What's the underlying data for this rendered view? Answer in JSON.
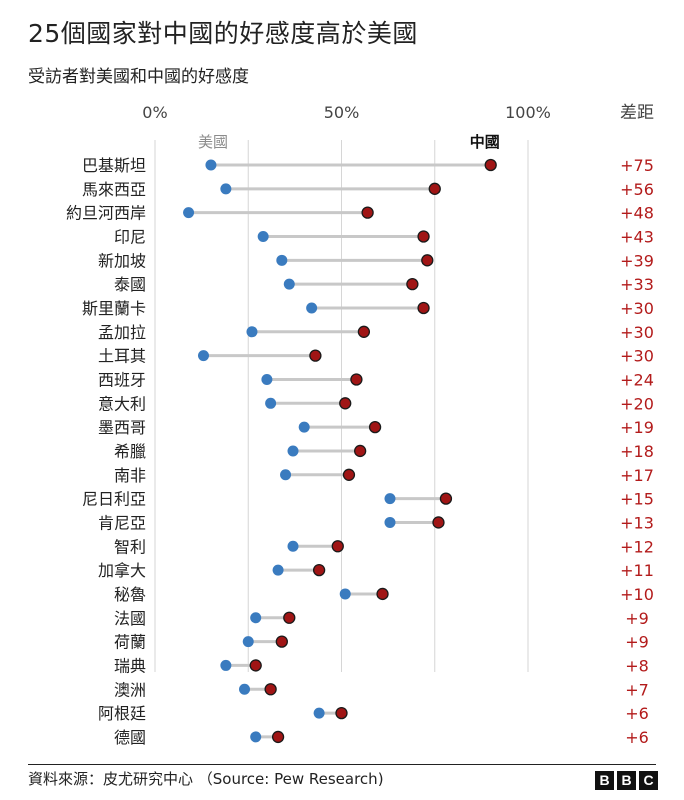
{
  "title": "25個國家對中國的好感度高於美國",
  "subtitle": "受訪者對美國和中國的好感度",
  "source": "資料來源：皮尤研究中心 （Source: Pew Research)",
  "logo_letters": [
    "B",
    "B",
    "C"
  ],
  "colors": {
    "us": "#3a7bbf",
    "china": "#a01515",
    "china_outline": "#1a1a1a",
    "connector": "#c8c8c8",
    "gridline": "#d6d6d6",
    "diff_text": "#b31b1b",
    "us_label": "#8c8c8c"
  },
  "chart_data": {
    "type": "dumbbell",
    "x_tick_labels": [
      "0%",
      "50%",
      "100%"
    ],
    "x_ticks": [
      0,
      50,
      100
    ],
    "xlim": [
      0,
      100
    ],
    "grid": true,
    "diff_header": "差距",
    "series_labels": {
      "us": "美國",
      "china": "中國"
    },
    "rows": [
      {
        "country": "巴基斯坦",
        "us": 15,
        "china": 90,
        "diff": "+75"
      },
      {
        "country": "馬來西亞",
        "us": 19,
        "china": 75,
        "diff": "+56"
      },
      {
        "country": "約旦河西岸",
        "us": 9,
        "china": 57,
        "diff": "+48"
      },
      {
        "country": "印尼",
        "us": 29,
        "china": 72,
        "diff": "+43"
      },
      {
        "country": "新加坡",
        "us": 34,
        "china": 73,
        "diff": "+39"
      },
      {
        "country": "泰國",
        "us": 36,
        "china": 69,
        "diff": "+33"
      },
      {
        "country": "斯里蘭卡",
        "us": 42,
        "china": 72,
        "diff": "+30"
      },
      {
        "country": "孟加拉",
        "us": 26,
        "china": 56,
        "diff": "+30"
      },
      {
        "country": "土耳其",
        "us": 13,
        "china": 43,
        "diff": "+30"
      },
      {
        "country": "西班牙",
        "us": 30,
        "china": 54,
        "diff": "+24"
      },
      {
        "country": "意大利",
        "us": 31,
        "china": 51,
        "diff": "+20"
      },
      {
        "country": "墨西哥",
        "us": 40,
        "china": 59,
        "diff": "+19"
      },
      {
        "country": "希臘",
        "us": 37,
        "china": 55,
        "diff": "+18"
      },
      {
        "country": "南非",
        "us": 35,
        "china": 52,
        "diff": "+17"
      },
      {
        "country": "尼日利亞",
        "us": 63,
        "china": 78,
        "diff": "+15"
      },
      {
        "country": "肯尼亞",
        "us": 63,
        "china": 76,
        "diff": "+13"
      },
      {
        "country": "智利",
        "us": 37,
        "china": 49,
        "diff": "+12"
      },
      {
        "country": "加拿大",
        "us": 33,
        "china": 44,
        "diff": "+11"
      },
      {
        "country": "秘魯",
        "us": 51,
        "china": 61,
        "diff": "+10"
      },
      {
        "country": "法國",
        "us": 27,
        "china": 36,
        "diff": "+9"
      },
      {
        "country": "荷蘭",
        "us": 25,
        "china": 34,
        "diff": "+9"
      },
      {
        "country": "瑞典",
        "us": 19,
        "china": 27,
        "diff": "+8"
      },
      {
        "country": "澳洲",
        "us": 24,
        "china": 31,
        "diff": "+7"
      },
      {
        "country": "阿根廷",
        "us": 44,
        "china": 50,
        "diff": "+6"
      },
      {
        "country": "德國",
        "us": 27,
        "china": 33,
        "diff": "+6"
      }
    ]
  }
}
